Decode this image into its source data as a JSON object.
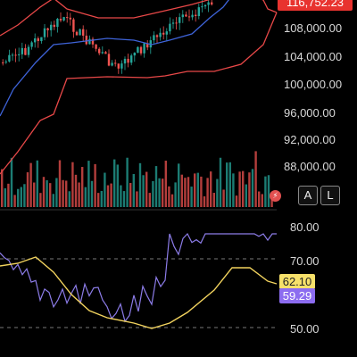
{
  "price_axis": {
    "last_price": "116,752.23",
    "labels": [
      "108,000.00",
      "104,000.00",
      "100,000.00",
      "96,000.00",
      "92,000.00",
      "88,000.00"
    ]
  },
  "rsi_axis": {
    "labels": [
      "80.00",
      "70.00",
      "50.00"
    ],
    "ma_value": "62.10",
    "rsi_value": "59.29"
  },
  "controls": {
    "auto_scale": "A",
    "log_scale": "L",
    "bolt_icon": "lightning-icon"
  },
  "colors": {
    "up": "#26a69a",
    "down": "#ef5350",
    "bollinger_outer": "#e84848",
    "bollinger_mid": "#3e63d8",
    "rsi_line": "#8c7ce8",
    "rsi_ma": "#f2d35e"
  }
}
